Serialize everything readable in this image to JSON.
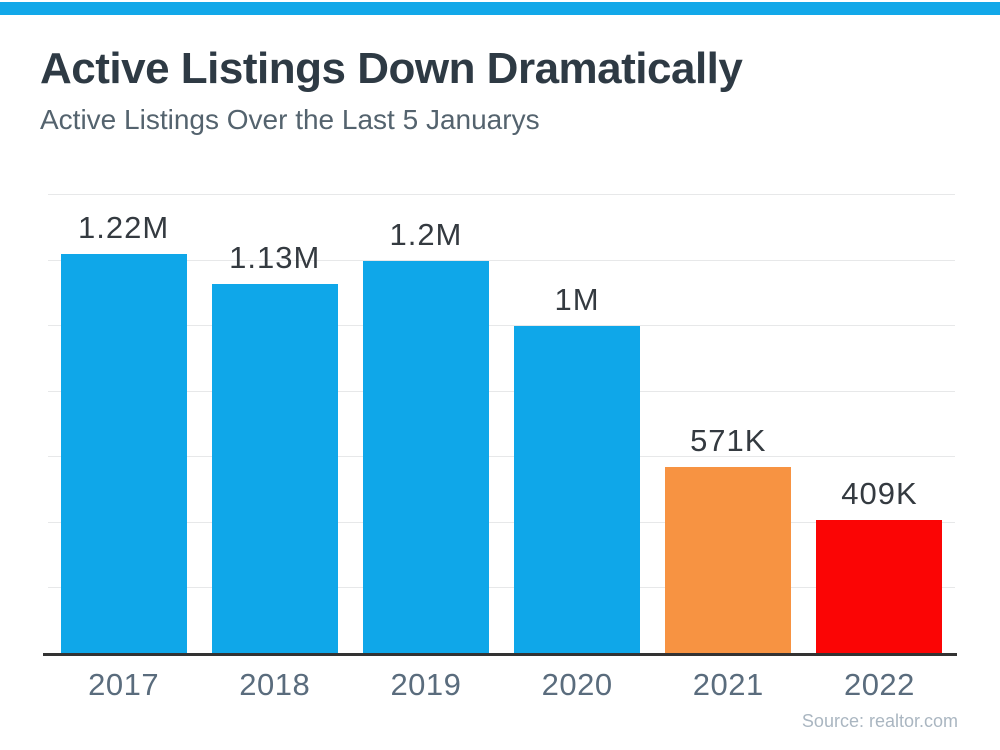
{
  "page": {
    "background": "#FFFFFF",
    "top_bar_color": "#12A8E9"
  },
  "header": {
    "title": "Active Listings Down Dramatically",
    "subtitle": "Active Listings Over the Last 5 Januarys"
  },
  "chart_data": {
    "type": "bar",
    "title": "Active Listings Down Dramatically",
    "subtitle": "Active Listings Over the Last 5 Januarys",
    "categories": [
      "2017",
      "2018",
      "2019",
      "2020",
      "2021",
      "2022"
    ],
    "values": [
      1220000,
      1130000,
      1200000,
      1000000,
      571000,
      409000
    ],
    "value_labels": [
      "1.22M",
      "1.13M",
      "1.2M",
      "1M",
      "571K",
      "409K"
    ],
    "bar_colors": [
      "#0FA7E9",
      "#0FA7E9",
      "#0FA7E9",
      "#0FA7E9",
      "#F79342",
      "#FB0505"
    ],
    "xlabel": "",
    "ylabel": "",
    "ylim": [
      0,
      1400000
    ],
    "gridline_step": 200000,
    "grid": true,
    "legend": false,
    "colors": {
      "accent_blue": "#0FA7E9",
      "accent_orange": "#F79342",
      "accent_red": "#FB0505",
      "title_text": "#2E3A44",
      "subtitle_text": "#54636E",
      "value_label_text": "#343A40",
      "axis_label_text": "#5A6C7D",
      "gridline": "#E7E8E9",
      "axis_line": "#333333",
      "source_text": "#AAB6C1"
    }
  },
  "footer": {
    "source": "Source: realtor.com"
  }
}
